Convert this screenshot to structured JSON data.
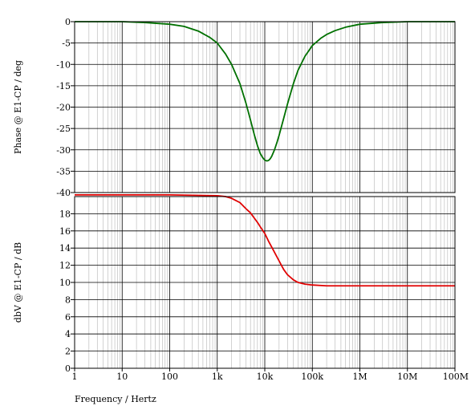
{
  "chart_data": [
    {
      "type": "line",
      "ylabel": "Phase @ E1-CP / deg",
      "xscale": "log",
      "xlim": [
        1,
        100000000
      ],
      "ylim": [
        -40,
        0
      ],
      "grid": true,
      "yticks": [
        "0",
        "-5",
        "-10",
        "-15",
        "-20",
        "-25",
        "-30",
        "-35",
        "-40"
      ],
      "series": [
        {
          "color": "#007000",
          "x": [
            1,
            10,
            30,
            100,
            200,
            400,
            700,
            1000,
            1500,
            2000,
            3000,
            4000,
            5000,
            6000,
            7000,
            8000,
            9000,
            10000,
            11000,
            12000,
            13000,
            14000,
            16000,
            18000,
            20000,
            25000,
            30000,
            40000,
            50000,
            70000,
            100000,
            150000,
            200000,
            300000,
            500000,
            1000000,
            3000000,
            10000000,
            100000000
          ],
          "y": [
            0,
            0,
            -0.2,
            -0.6,
            -1.1,
            -2.2,
            -3.7,
            -5,
            -7.6,
            -10,
            -14.5,
            -19,
            -23,
            -26.4,
            -29,
            -30.8,
            -31.8,
            -32.4,
            -32.6,
            -32.5,
            -32.1,
            -31.5,
            -30,
            -28.3,
            -26.6,
            -22.6,
            -19.3,
            -14.5,
            -11.4,
            -8.1,
            -5.6,
            -3.9,
            -3,
            -2.1,
            -1.3,
            -0.6,
            -0.2,
            0,
            0
          ]
        }
      ]
    },
    {
      "type": "line",
      "ylabel": "dbV @ E1-CP / dB",
      "xlabel": "Frequency / Hertz",
      "xscale": "log",
      "xlim": [
        1,
        100000000
      ],
      "ylim": [
        0,
        20
      ],
      "grid": true,
      "yticks": [
        "0",
        "2",
        "4",
        "6",
        "8",
        "10",
        "12",
        "14",
        "16",
        "18"
      ],
      "xticks": [
        "1",
        "10",
        "100",
        "1k",
        "10k",
        "100k",
        "1M",
        "10M",
        "100M"
      ],
      "series": [
        {
          "color": "#e00000",
          "x": [
            1,
            10,
            100,
            1000,
            1500,
            2000,
            3000,
            4000,
            5000,
            6000,
            7000,
            8000,
            10000,
            12000,
            15000,
            20000,
            25000,
            30000,
            40000,
            50000,
            70000,
            100000,
            200000,
            1000000,
            100000000
          ],
          "y": [
            20.2,
            20.2,
            20.2,
            20.1,
            20,
            19.8,
            19.3,
            18.6,
            18.1,
            17.5,
            17,
            16.5,
            15.7,
            14.8,
            13.8,
            12.5,
            11.5,
            10.9,
            10.3,
            10,
            9.8,
            9.7,
            9.6,
            9.6,
            9.6
          ]
        }
      ]
    }
  ]
}
